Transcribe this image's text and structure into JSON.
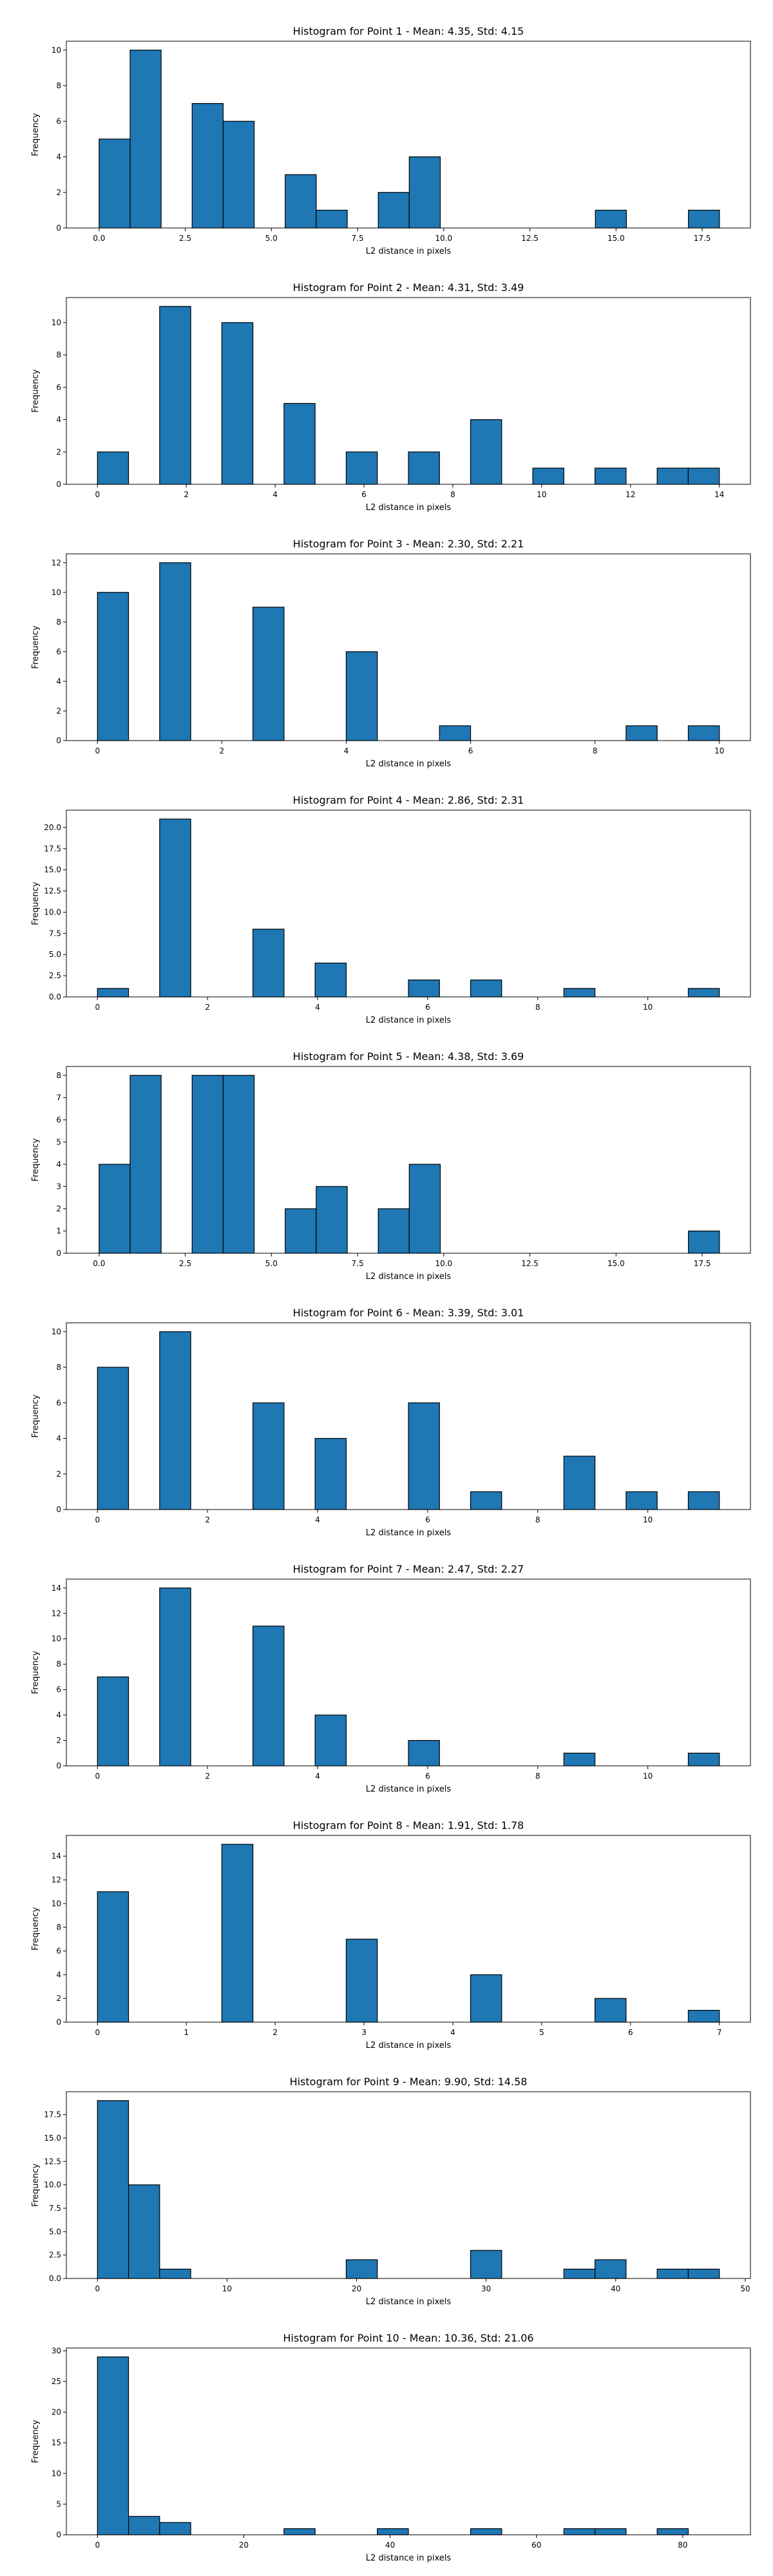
{
  "colors": {
    "bar_fill": "#1f77b4",
    "bar_edge": "#000000"
  },
  "chart_data": [
    {
      "type": "bar",
      "title": "Histogram for Point 1 - Mean: 4.35, Std: 4.15",
      "xlabel": "L2 distance in pixels",
      "ylabel": "Frequency",
      "xlim": [
        -0.95,
        18.9
      ],
      "ylim": [
        0,
        10.5
      ],
      "xticks": [
        0.0,
        2.5,
        5.0,
        7.5,
        10.0,
        12.5,
        15.0,
        17.5
      ],
      "xtick_labels": [
        "0.0",
        "2.5",
        "5.0",
        "7.5",
        "10.0",
        "12.5",
        "15.0",
        "17.5"
      ],
      "yticks": [
        0,
        2,
        4,
        6,
        8,
        10
      ],
      "ytick_labels": [
        "0",
        "2",
        "4",
        "6",
        "8",
        "10"
      ],
      "bins": [
        [
          0,
          0.9,
          5
        ],
        [
          0.9,
          1.8,
          10
        ],
        [
          2.7,
          3.6,
          7
        ],
        [
          3.6,
          4.5,
          6
        ],
        [
          5.4,
          6.3,
          3
        ],
        [
          6.3,
          7.2,
          1
        ],
        [
          8.1,
          9.0,
          2
        ],
        [
          9.0,
          9.9,
          4
        ],
        [
          14.4,
          15.3,
          1
        ],
        [
          17.1,
          18.0,
          1
        ]
      ]
    },
    {
      "type": "bar",
      "title": "Histogram for Point 2 - Mean: 4.31, Std: 3.49",
      "xlabel": "L2 distance in pixels",
      "ylabel": "Frequency",
      "xlim": [
        -0.7,
        14.7
      ],
      "ylim": [
        0,
        11.55
      ],
      "xticks": [
        0,
        2,
        4,
        6,
        8,
        10,
        12,
        14
      ],
      "xtick_labels": [
        "0",
        "2",
        "4",
        "6",
        "8",
        "10",
        "12",
        "14"
      ],
      "yticks": [
        0,
        2,
        4,
        6,
        8,
        10
      ],
      "ytick_labels": [
        "0",
        "2",
        "4",
        "6",
        "8",
        "10"
      ],
      "bins": [
        [
          0,
          0.7,
          2
        ],
        [
          1.4,
          2.1,
          11
        ],
        [
          2.8,
          3.5,
          10
        ],
        [
          4.2,
          4.9,
          5
        ],
        [
          5.6,
          6.3,
          2
        ],
        [
          7.0,
          7.7,
          2
        ],
        [
          8.4,
          9.1,
          4
        ],
        [
          9.8,
          10.5,
          1
        ],
        [
          11.2,
          11.9,
          1
        ],
        [
          12.6,
          13.3,
          1
        ],
        [
          13.3,
          14.0,
          1
        ]
      ]
    },
    {
      "type": "bar",
      "title": "Histogram for Point 3 - Mean: 2.30, Std: 2.21",
      "xlabel": "L2 distance in pixels",
      "ylabel": "Frequency",
      "xlim": [
        -0.5,
        10.5
      ],
      "ylim": [
        0,
        12.6
      ],
      "xticks": [
        0,
        2,
        4,
        6,
        8,
        10
      ],
      "xtick_labels": [
        "0",
        "2",
        "4",
        "6",
        "8",
        "10"
      ],
      "yticks": [
        0,
        2,
        4,
        6,
        8,
        10,
        12
      ],
      "ytick_labels": [
        "0",
        "2",
        "4",
        "6",
        "8",
        "10",
        "12"
      ],
      "bins": [
        [
          0,
          0.5,
          10
        ],
        [
          1.0,
          1.5,
          12
        ],
        [
          2.5,
          3.0,
          9
        ],
        [
          4.0,
          4.5,
          6
        ],
        [
          5.5,
          6.0,
          1
        ],
        [
          8.5,
          9.0,
          1
        ],
        [
          9.5,
          10.0,
          1
        ]
      ]
    },
    {
      "type": "bar",
      "title": "Histogram for Point 4 - Mean: 2.86, Std: 2.31",
      "xlabel": "L2 distance in pixels",
      "ylabel": "Frequency",
      "xlim": [
        -0.565,
        11.865
      ],
      "ylim": [
        0,
        22.05
      ],
      "xticks": [
        0,
        2,
        4,
        6,
        8,
        10
      ],
      "xtick_labels": [
        "0",
        "2",
        "4",
        "6",
        "8",
        "10"
      ],
      "yticks": [
        0,
        2.5,
        5,
        7.5,
        10,
        12.5,
        15,
        17.5,
        20
      ],
      "ytick_labels": [
        "0.0",
        "2.5",
        "5.0",
        "7.5",
        "10.0",
        "12.5",
        "15.0",
        "17.5",
        "20.0"
      ],
      "bins": [
        [
          0,
          0.565,
          1
        ],
        [
          1.13,
          1.695,
          21
        ],
        [
          2.825,
          3.39,
          8
        ],
        [
          3.955,
          4.52,
          4
        ],
        [
          5.65,
          6.215,
          2
        ],
        [
          6.78,
          7.345,
          2
        ],
        [
          8.475,
          9.04,
          1
        ],
        [
          10.735,
          11.3,
          1
        ]
      ]
    },
    {
      "type": "bar",
      "title": "Histogram for Point 5 - Mean: 4.38, Std: 3.69",
      "xlabel": "L2 distance in pixels",
      "ylabel": "Frequency",
      "xlim": [
        -0.95,
        18.9
      ],
      "ylim": [
        0,
        8.4
      ],
      "xticks": [
        0.0,
        2.5,
        5.0,
        7.5,
        10.0,
        12.5,
        15.0,
        17.5
      ],
      "xtick_labels": [
        "0.0",
        "2.5",
        "5.0",
        "7.5",
        "10.0",
        "12.5",
        "15.0",
        "17.5"
      ],
      "yticks": [
        0,
        1,
        2,
        3,
        4,
        5,
        6,
        7,
        8
      ],
      "ytick_labels": [
        "0",
        "1",
        "2",
        "3",
        "4",
        "5",
        "6",
        "7",
        "8"
      ],
      "bins": [
        [
          0,
          0.9,
          4
        ],
        [
          0.9,
          1.8,
          8
        ],
        [
          2.7,
          3.6,
          8
        ],
        [
          3.6,
          4.5,
          8
        ],
        [
          5.4,
          6.3,
          2
        ],
        [
          6.3,
          7.2,
          3
        ],
        [
          8.1,
          9.0,
          2
        ],
        [
          9.0,
          9.9,
          4
        ],
        [
          17.1,
          18.0,
          1
        ]
      ]
    },
    {
      "type": "bar",
      "title": "Histogram for Point 6 - Mean: 3.39, Std: 3.01",
      "xlabel": "L2 distance in pixels",
      "ylabel": "Frequency",
      "xlim": [
        -0.565,
        11.865
      ],
      "ylim": [
        0,
        10.5
      ],
      "xticks": [
        0,
        2,
        4,
        6,
        8,
        10
      ],
      "xtick_labels": [
        "0",
        "2",
        "4",
        "6",
        "8",
        "10"
      ],
      "yticks": [
        0,
        2,
        4,
        6,
        8,
        10
      ],
      "ytick_labels": [
        "0",
        "2",
        "4",
        "6",
        "8",
        "10"
      ],
      "bins": [
        [
          0,
          0.565,
          8
        ],
        [
          1.13,
          1.695,
          10
        ],
        [
          2.825,
          3.39,
          6
        ],
        [
          3.955,
          4.52,
          4
        ],
        [
          5.65,
          6.215,
          6
        ],
        [
          6.78,
          7.345,
          1
        ],
        [
          8.475,
          9.04,
          3
        ],
        [
          9.605,
          10.17,
          1
        ],
        [
          10.735,
          11.3,
          1
        ]
      ]
    },
    {
      "type": "bar",
      "title": "Histogram for Point 7 - Mean: 2.47, Std: 2.27",
      "xlabel": "L2 distance in pixels",
      "ylabel": "Frequency",
      "xlim": [
        -0.565,
        11.865
      ],
      "ylim": [
        0,
        14.7
      ],
      "xticks": [
        0,
        2,
        4,
        6,
        8,
        10
      ],
      "xtick_labels": [
        "0",
        "2",
        "4",
        "6",
        "8",
        "10"
      ],
      "yticks": [
        0,
        2,
        4,
        6,
        8,
        10,
        12,
        14
      ],
      "ytick_labels": [
        "0",
        "2",
        "4",
        "6",
        "8",
        "10",
        "12",
        "14"
      ],
      "bins": [
        [
          0,
          0.565,
          7
        ],
        [
          1.13,
          1.695,
          14
        ],
        [
          2.825,
          3.39,
          11
        ],
        [
          3.955,
          4.52,
          4
        ],
        [
          5.65,
          6.215,
          2
        ],
        [
          8.475,
          9.04,
          1
        ],
        [
          10.735,
          11.3,
          1
        ]
      ]
    },
    {
      "type": "bar",
      "title": "Histogram for Point 8 - Mean: 1.91, Std: 1.78",
      "xlabel": "L2 distance in pixels",
      "ylabel": "Frequency",
      "xlim": [
        -0.35,
        7.35
      ],
      "ylim": [
        0,
        15.75
      ],
      "xticks": [
        0,
        1,
        2,
        3,
        4,
        5,
        6,
        7
      ],
      "xtick_labels": [
        "0",
        "1",
        "2",
        "3",
        "4",
        "5",
        "6",
        "7"
      ],
      "yticks": [
        0,
        2,
        4,
        6,
        8,
        10,
        12,
        14
      ],
      "ytick_labels": [
        "0",
        "2",
        "4",
        "6",
        "8",
        "10",
        "12",
        "14"
      ],
      "bins": [
        [
          0,
          0.35,
          11
        ],
        [
          1.4,
          1.75,
          15
        ],
        [
          2.8,
          3.15,
          7
        ],
        [
          4.2,
          4.55,
          4
        ],
        [
          5.6,
          5.95,
          2
        ],
        [
          6.65,
          7.0,
          1
        ]
      ]
    },
    {
      "type": "bar",
      "title": "Histogram for Point 9 - Mean: 9.90, Std: 14.58",
      "xlabel": "L2 distance in pixels",
      "ylabel": "Frequency",
      "xlim": [
        -2.4,
        50.4
      ],
      "ylim": [
        0,
        19.95
      ],
      "xticks": [
        0,
        10,
        20,
        30,
        40,
        50
      ],
      "xtick_labels": [
        "0",
        "10",
        "20",
        "30",
        "40",
        "50"
      ],
      "yticks": [
        0,
        2.5,
        5,
        7.5,
        10,
        12.5,
        15,
        17.5
      ],
      "ytick_labels": [
        "0.0",
        "2.5",
        "5.0",
        "7.5",
        "10.0",
        "12.5",
        "15.0",
        "17.5"
      ],
      "bins": [
        [
          0,
          2.4,
          19
        ],
        [
          2.4,
          4.8,
          10
        ],
        [
          4.8,
          7.2,
          1
        ],
        [
          19.2,
          21.6,
          2
        ],
        [
          28.8,
          31.2,
          3
        ],
        [
          36.0,
          38.4,
          1
        ],
        [
          38.4,
          40.8,
          2
        ],
        [
          43.2,
          45.6,
          1
        ],
        [
          45.6,
          48.0,
          1
        ]
      ]
    },
    {
      "type": "bar",
      "title": "Histogram for Point 10 - Mean: 10.36, Std: 21.06",
      "xlabel": "L2 distance in pixels",
      "ylabel": "Frequency",
      "xlim": [
        -4.25,
        89.25
      ],
      "ylim": [
        0,
        30.45
      ],
      "xticks": [
        0,
        20,
        40,
        60,
        80
      ],
      "xtick_labels": [
        "0",
        "20",
        "40",
        "60",
        "80"
      ],
      "yticks": [
        0,
        5,
        10,
        15,
        20,
        25,
        30
      ],
      "ytick_labels": [
        "0",
        "5",
        "10",
        "15",
        "20",
        "25",
        "30"
      ],
      "bins": [
        [
          0,
          4.25,
          29
        ],
        [
          4.25,
          8.5,
          3
        ],
        [
          8.5,
          12.75,
          2
        ],
        [
          25.5,
          29.75,
          1
        ],
        [
          38.25,
          42.5,
          1
        ],
        [
          51.0,
          55.25,
          1
        ],
        [
          63.75,
          68.0,
          1
        ],
        [
          68.0,
          72.25,
          1
        ],
        [
          76.5,
          80.75,
          1
        ]
      ]
    }
  ]
}
